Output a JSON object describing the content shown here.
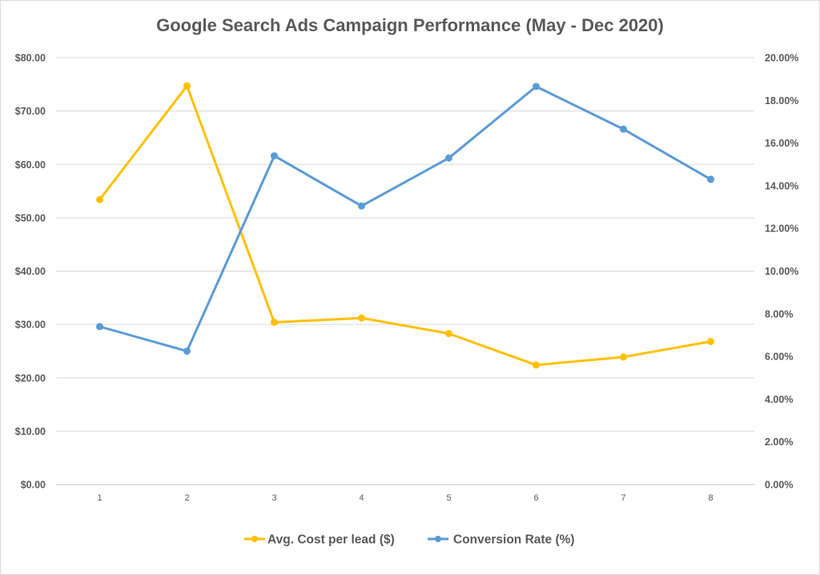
{
  "chart_data": {
    "type": "line",
    "title": "Google Search Ads Campaign Performance (May - Dec 2020)",
    "x": [
      1,
      2,
      3,
      4,
      5,
      6,
      7,
      8
    ],
    "y_left": {
      "min": 0,
      "max": 80,
      "step": 10,
      "tick_labels": [
        "$0.00",
        "$10.00",
        "$20.00",
        "$30.00",
        "$40.00",
        "$50.00",
        "$60.00",
        "$70.00",
        "$80.00"
      ]
    },
    "y_right": {
      "min": 0,
      "max": 20,
      "step": 2,
      "tick_labels": [
        "0.00%",
        "2.00%",
        "4.00%",
        "6.00%",
        "8.00%",
        "10.00%",
        "12.00%",
        "14.00%",
        "16.00%",
        "18.00%",
        "20.00%"
      ]
    },
    "series": [
      {
        "name": "Avg. Cost per lead ($)",
        "axis": "left",
        "color": "#FFC000",
        "values": [
          53.4,
          74.7,
          30.4,
          31.2,
          28.3,
          22.4,
          23.9,
          26.8
        ]
      },
      {
        "name": "Conversion Rate (%)",
        "axis": "right",
        "color": "#5B9BD5",
        "values": [
          7.4,
          6.25,
          15.4,
          13.05,
          15.3,
          18.65,
          16.65,
          14.3
        ]
      }
    ],
    "grid": true,
    "legend_position": "bottom"
  }
}
